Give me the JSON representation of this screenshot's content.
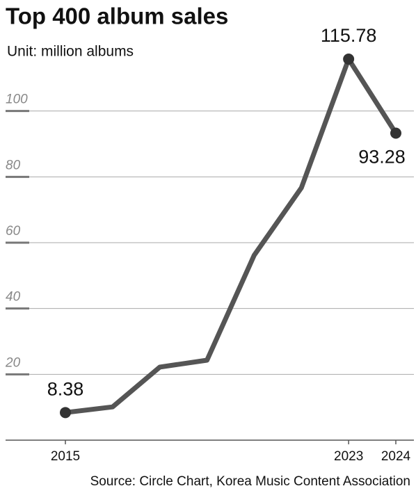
{
  "chart_data": {
    "type": "line",
    "title": "Top 400 album sales",
    "subtitle": "Unit: million albums",
    "source": "Source: Circle Chart, Korea Music Content Association",
    "categories": [
      "2015",
      null,
      null,
      null,
      null,
      null,
      "2023",
      "2024"
    ],
    "series": [
      {
        "name": "Top 400 album sales",
        "color": "#555555",
        "values": [
          8.38,
          10.1,
          22.2,
          24.3,
          56.2,
          76.7,
          115.78,
          93.28
        ]
      }
    ],
    "ylim": [
      0,
      120
    ],
    "yticks": [
      20,
      40,
      60,
      80,
      100
    ],
    "grid": true
  }
}
